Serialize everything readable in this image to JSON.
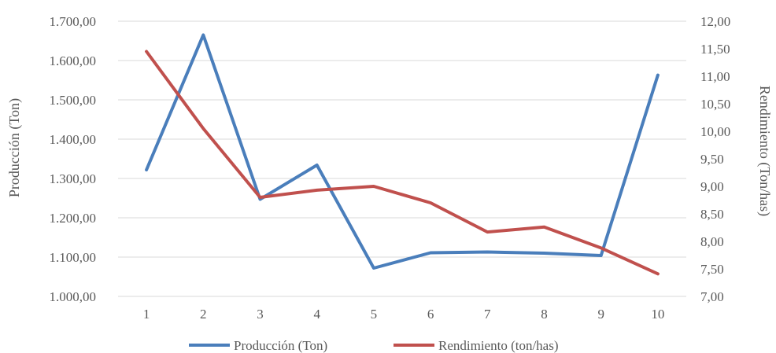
{
  "chart_data": {
    "type": "line",
    "x": [
      1,
      2,
      3,
      4,
      5,
      6,
      7,
      8,
      9,
      10
    ],
    "x_tick_labels": [
      "1",
      "2",
      "3",
      "4",
      "5",
      "6",
      "7",
      "8",
      "9",
      "10"
    ],
    "series": [
      {
        "name": "Producción (Ton)",
        "axis": "left",
        "color": "#4a7ebb",
        "values": [
          1322,
          1665,
          1247,
          1334,
          1072,
          1111,
          1113,
          1110,
          1104,
          1563
        ]
      },
      {
        "name": "Rendimiento (ton/has)",
        "axis": "right",
        "color": "#c0504d",
        "values": [
          11.45,
          10.05,
          8.8,
          8.93,
          9.0,
          8.7,
          8.17,
          8.26,
          7.88,
          7.41
        ]
      }
    ],
    "ylabel": "Producción (Ton)",
    "ylabel_right": "Rendimiento (Ton/has)",
    "ylim": [
      1000,
      1700
    ],
    "ylim_right": [
      7,
      12
    ],
    "y_tick_labels": [
      "1.000,00",
      "1.100,00",
      "1.200,00",
      "1.300,00",
      "1.400,00",
      "1.500,00",
      "1.600,00",
      "1.700,00"
    ],
    "y_tick_labels_right": [
      "7,00",
      "7,50",
      "8,00",
      "8,50",
      "9,00",
      "9,50",
      "10,00",
      "10,50",
      "11,00",
      "11,50",
      "12,00"
    ],
    "grid": true,
    "legend_position": "bottom",
    "gridline_color": "#d9d9d9"
  }
}
